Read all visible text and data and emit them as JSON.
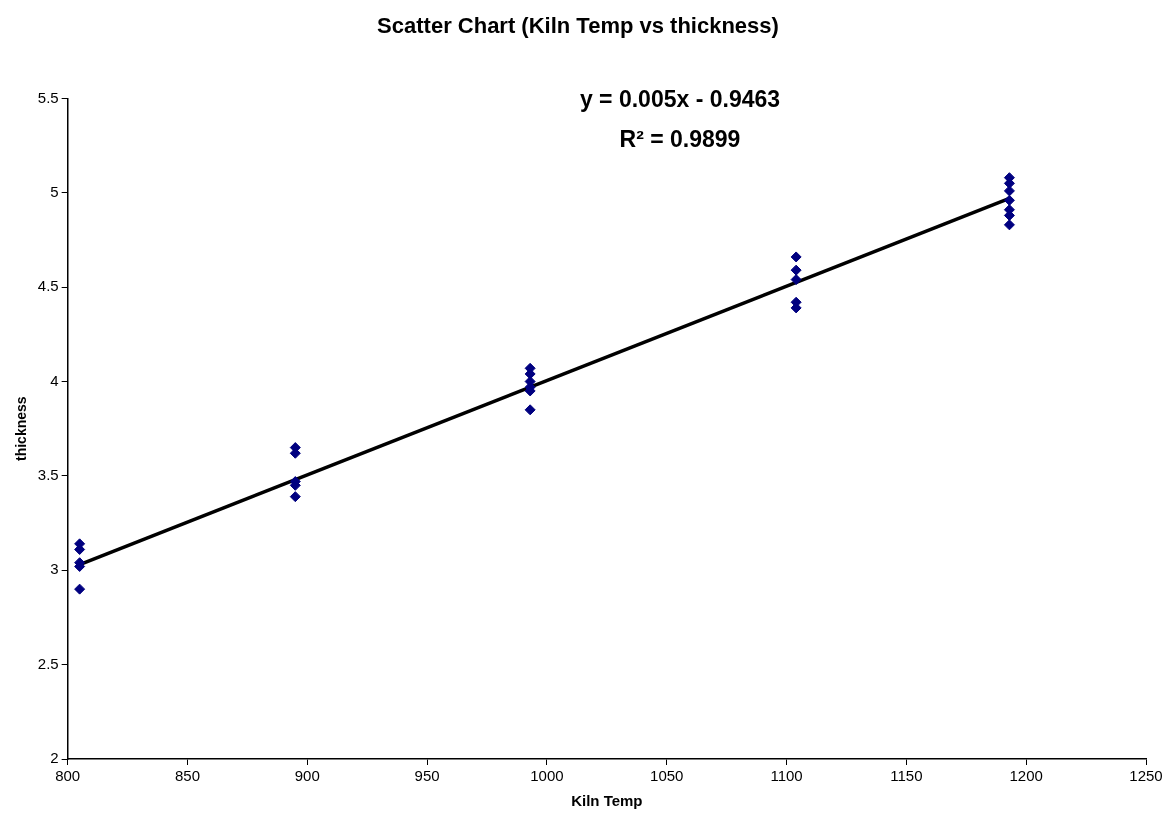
{
  "chart_data": {
    "type": "scatter",
    "title": "Scatter Chart (Kiln Temp vs thickness)",
    "xlabel": "Kiln Temp",
    "ylabel": "thickness",
    "xlim": [
      800,
      1250
    ],
    "xticks": [
      800,
      850,
      900,
      950,
      1000,
      1050,
      1100,
      1150,
      1200,
      1250
    ],
    "ylim": [
      2,
      5.5
    ],
    "yticks": [
      2,
      2.5,
      3,
      3.5,
      4,
      4.5,
      5,
      5.5
    ],
    "grid": false,
    "legend": false,
    "marker": "diamond",
    "annotations": [
      "y = 0.005x - 0.9463",
      "R² = 0.9899"
    ],
    "series": [
      {
        "type": "scatter",
        "color": "#000080",
        "x": [
          805,
          805,
          805,
          805,
          805,
          895,
          895,
          895,
          895,
          895,
          993,
          993,
          993,
          993,
          993,
          993,
          1104,
          1104,
          1104,
          1104,
          1104,
          1193,
          1193,
          1193,
          1193,
          1193,
          1193,
          1193
        ],
        "values": [
          3.14,
          3.11,
          3.04,
          3.02,
          2.9,
          3.65,
          3.62,
          3.47,
          3.45,
          3.39,
          4.07,
          4.04,
          4.0,
          3.97,
          3.95,
          3.85,
          4.66,
          4.59,
          4.54,
          4.42,
          4.39,
          5.08,
          5.05,
          5.01,
          4.96,
          4.91,
          4.88,
          4.83
        ]
      },
      {
        "type": "line",
        "color": "#000000",
        "marker": "none",
        "line_style": "solid",
        "x": [
          805,
          1193
        ],
        "values": [
          3.03,
          4.97
        ]
      }
    ]
  }
}
